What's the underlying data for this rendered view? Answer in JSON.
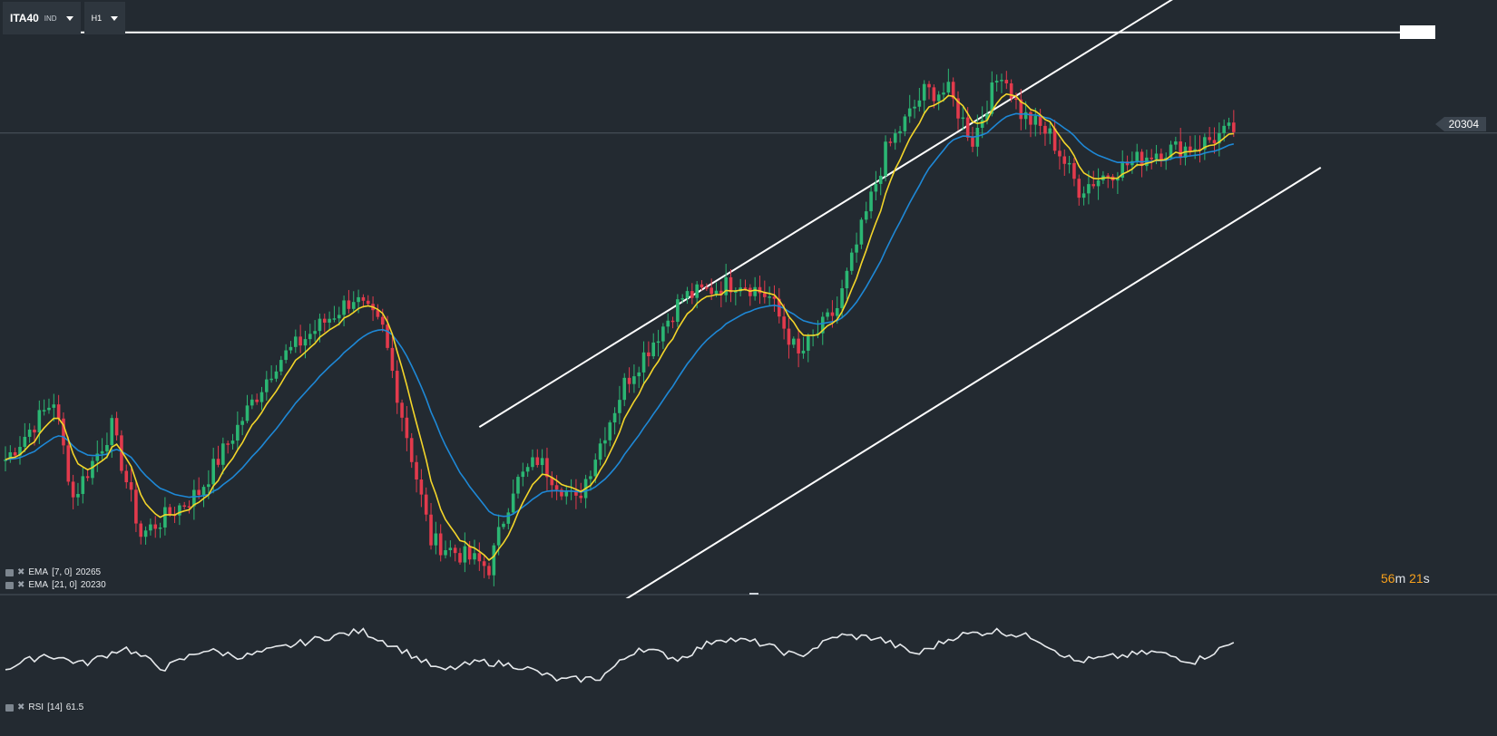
{
  "toolbar": {
    "symbol": "ITA40",
    "symbol_type": "IND",
    "timeframe": "H1"
  },
  "price_tag": "20304",
  "indicators": {
    "ema7": {
      "label": "EMA",
      "params": "[7, 0]",
      "value": "20265",
      "color": "#f3d52a"
    },
    "ema21": {
      "label": "EMA",
      "params": "[21, 0]",
      "value": "20230",
      "color": "#1e88d6"
    },
    "rsi": {
      "label": "RSI",
      "params": "[14]",
      "value": "61.5",
      "color": "#e6e9ec"
    }
  },
  "countdown": {
    "minutes": "56",
    "m": "m",
    "seconds": "21",
    "s": "s"
  },
  "colors": {
    "background": "#232a31",
    "up_candle": "#2bb673",
    "down_candle": "#e23a4c",
    "trendline": "#ffffff",
    "separator": "#4a535c"
  },
  "icons": [
    "chevron-down-icon",
    "indicator-settings-icon",
    "close-icon"
  ],
  "chart_data": {
    "type": "candlestick",
    "title": "",
    "instrument": "ITA40",
    "timeframe": "H1",
    "price_range": [
      19450,
      20550
    ],
    "last_price": 20304,
    "ema7_last": 20265,
    "ema21_last": 20230,
    "rsi14_last": 61.5,
    "close_keypoints": [
      19700,
      19810,
      19630,
      19760,
      19560,
      19640,
      19880,
      20000,
      19940,
      19550,
      19500,
      19650,
      19700,
      19620,
      19840,
      20000,
      20030,
      20000,
      19890,
      19980,
      20270,
      20380,
      20380,
      20290,
      20380,
      20420,
      20340,
      20300,
      20200,
      20230,
      20270,
      20280,
      20310
    ],
    "close_keypoint_bars": [
      0,
      10,
      14,
      22,
      28,
      40,
      56,
      72,
      78,
      88,
      100,
      105,
      110,
      118,
      128,
      140,
      152,
      158,
      164,
      172,
      182,
      190,
      195,
      200,
      204,
      206,
      210,
      216,
      222,
      228,
      238,
      246,
      254
    ],
    "rsi_keypoints": [
      48,
      60,
      52,
      66,
      48,
      64,
      58,
      66,
      74,
      80,
      64,
      46,
      54,
      50,
      38,
      40,
      66,
      56,
      74,
      70,
      58,
      76,
      74,
      60,
      76,
      80,
      74,
      54,
      58,
      62,
      54,
      70
    ],
    "resistance_level": 20490,
    "channel": {
      "upper": [
        {
          "bar": 98,
          "price": 19760
        },
        {
          "bar": 242,
          "price": 20555
        }
      ],
      "lower": [
        {
          "bar": 128,
          "price": 19440
        },
        {
          "bar": 272,
          "price": 20240
        }
      ]
    }
  }
}
